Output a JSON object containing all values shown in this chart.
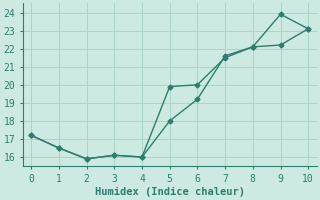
{
  "line1_x": [
    0,
    1,
    2,
    3,
    4,
    5,
    6,
    7,
    8,
    9,
    10
  ],
  "line1_y": [
    17.2,
    16.5,
    15.9,
    16.1,
    16.0,
    18.0,
    19.2,
    21.6,
    22.1,
    23.9,
    23.1
  ],
  "line2_x": [
    0,
    1,
    2,
    3,
    4,
    5,
    6,
    7,
    8,
    9,
    10
  ],
  "line2_y": [
    17.2,
    16.5,
    15.9,
    16.1,
    16.0,
    19.9,
    20.0,
    21.5,
    22.1,
    22.2,
    23.1
  ],
  "line_color": "#2e7d6e",
  "background_color": "#cce9e2",
  "grid_color": "#aad4cb",
  "xlabel": "Humidex (Indice chaleur)",
  "xlim": [
    -0.3,
    10.3
  ],
  "ylim": [
    15.5,
    24.5
  ],
  "yticks": [
    16,
    17,
    18,
    19,
    20,
    21,
    22,
    23,
    24
  ],
  "xticks": [
    0,
    1,
    2,
    3,
    4,
    5,
    6,
    7,
    8,
    9,
    10
  ],
  "marker": "D",
  "markersize": 2.5,
  "linewidth": 1.0,
  "xlabel_fontsize": 7.5,
  "tick_fontsize": 7.0
}
